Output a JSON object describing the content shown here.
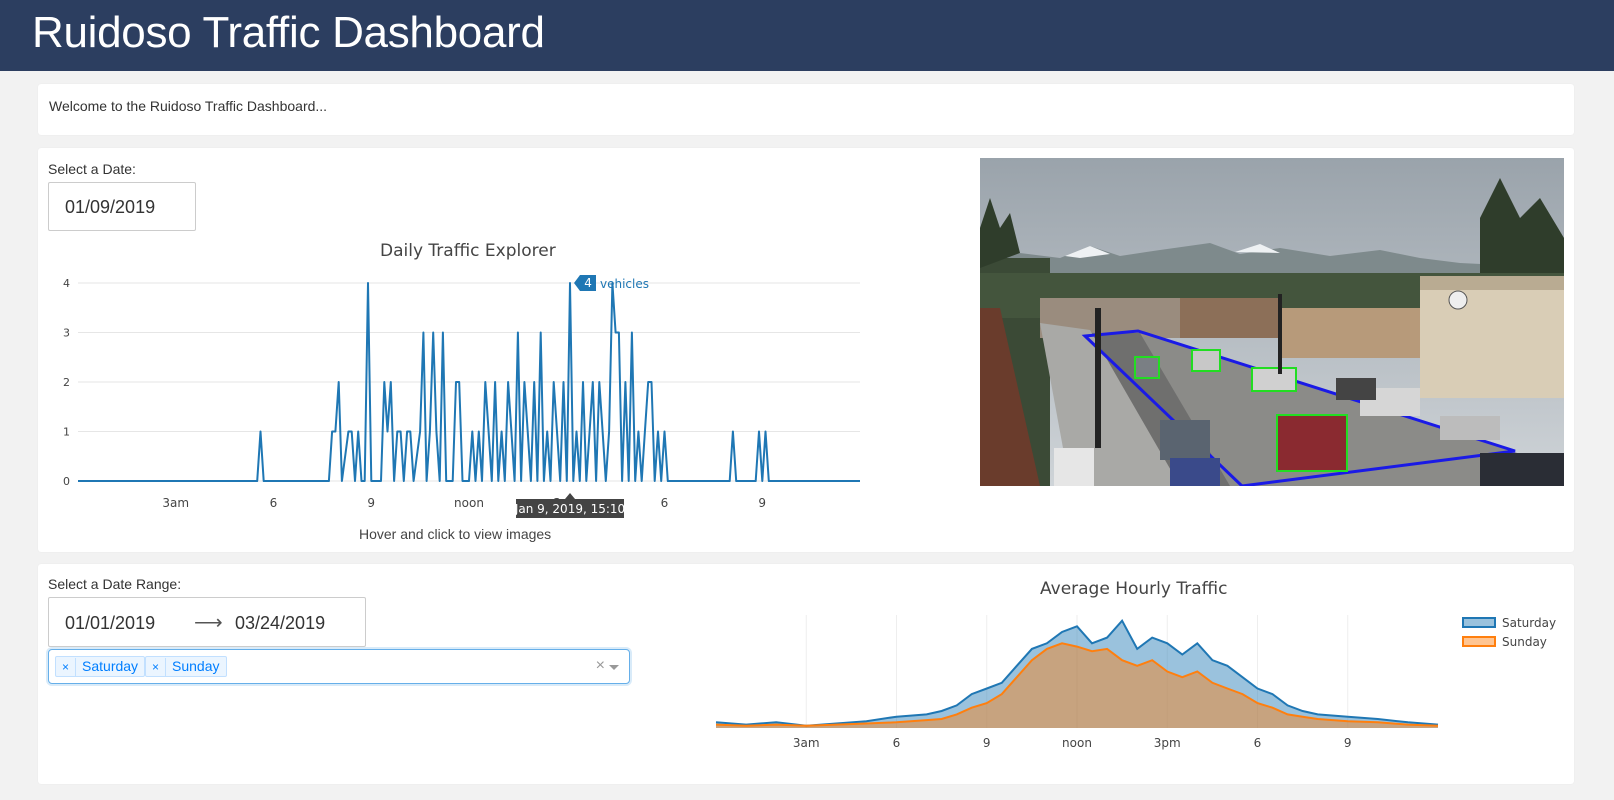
{
  "header": {
    "title": "Ruidoso Traffic Dashboard"
  },
  "welcome": {
    "text": "Welcome to the Ruidoso Traffic Dashboard..."
  },
  "explorer": {
    "date_label": "Select a Date:",
    "date_value": "01/09/2019",
    "hint": "Hover and click to view images",
    "hover": {
      "value": "4",
      "unit": "vehicles",
      "time": "Jan 9, 2019, 15:10"
    }
  },
  "camera_image": {
    "description": "traffic camera view with detected vehicles"
  },
  "hourly": {
    "range_label": "Select a Date Range:",
    "start_date": "01/01/2019",
    "end_date": "03/24/2019",
    "days": [
      "Saturday",
      "Sunday"
    ]
  },
  "colors": {
    "header": "#2c3e60",
    "series_blue": "#1f77b4",
    "series_orange": "#ff7f0e",
    "detection_box": "#22dd22",
    "roi": "#1a1ae6"
  },
  "chart_data": [
    {
      "type": "line",
      "title": "Daily Traffic Explorer",
      "x_tick_labels": [
        "3am",
        "6",
        "9",
        "noon",
        "3pm",
        "6",
        "9"
      ],
      "x_tick_hours": [
        3,
        6,
        9,
        12,
        15,
        18,
        21
      ],
      "y_ticks": [
        0,
        1,
        2,
        3,
        4
      ],
      "ylim": [
        0,
        4
      ],
      "xlim_hours": [
        0,
        24
      ],
      "series": [
        {
          "points": [
            [
              0,
              0
            ],
            [
              5.5,
              0
            ],
            [
              5.6,
              1
            ],
            [
              5.7,
              0
            ],
            [
              7.7,
              0
            ],
            [
              7.8,
              1
            ],
            [
              7.9,
              1
            ],
            [
              8.0,
              2
            ],
            [
              8.1,
              0
            ],
            [
              8.3,
              1
            ],
            [
              8.4,
              1
            ],
            [
              8.5,
              0
            ],
            [
              8.6,
              1
            ],
            [
              8.7,
              0
            ],
            [
              8.8,
              0
            ],
            [
              8.9,
              4
            ],
            [
              9.0,
              0
            ],
            [
              9.3,
              0
            ],
            [
              9.4,
              2
            ],
            [
              9.5,
              1
            ],
            [
              9.6,
              2
            ],
            [
              9.7,
              0
            ],
            [
              9.8,
              1
            ],
            [
              9.9,
              1
            ],
            [
              10.0,
              0
            ],
            [
              10.1,
              1
            ],
            [
              10.2,
              1
            ],
            [
              10.3,
              0
            ],
            [
              10.5,
              1
            ],
            [
              10.6,
              3
            ],
            [
              10.7,
              0
            ],
            [
              10.8,
              1
            ],
            [
              10.9,
              3
            ],
            [
              11.0,
              1
            ],
            [
              11.1,
              0
            ],
            [
              11.2,
              3
            ],
            [
              11.3,
              0
            ],
            [
              11.5,
              0
            ],
            [
              11.6,
              2
            ],
            [
              11.7,
              2
            ],
            [
              11.8,
              0
            ],
            [
              12.0,
              0
            ],
            [
              12.1,
              1
            ],
            [
              12.2,
              0
            ],
            [
              12.3,
              1
            ],
            [
              12.4,
              0
            ],
            [
              12.5,
              2
            ],
            [
              12.6,
              1
            ],
            [
              12.7,
              0
            ],
            [
              12.8,
              2
            ],
            [
              12.9,
              0
            ],
            [
              13.0,
              1
            ],
            [
              13.1,
              0
            ],
            [
              13.2,
              2
            ],
            [
              13.3,
              1
            ],
            [
              13.4,
              0
            ],
            [
              13.5,
              3
            ],
            [
              13.6,
              0
            ],
            [
              13.7,
              2
            ],
            [
              13.8,
              1
            ],
            [
              13.9,
              0
            ],
            [
              14.0,
              2
            ],
            [
              14.1,
              0
            ],
            [
              14.2,
              3
            ],
            [
              14.3,
              0
            ],
            [
              14.4,
              1
            ],
            [
              14.5,
              0
            ],
            [
              14.6,
              2
            ],
            [
              14.7,
              1
            ],
            [
              14.8,
              0
            ],
            [
              14.9,
              2
            ],
            [
              15.0,
              0
            ],
            [
              15.1,
              4
            ],
            [
              15.2,
              0
            ],
            [
              15.3,
              1
            ],
            [
              15.4,
              0
            ],
            [
              15.5,
              2
            ],
            [
              15.6,
              0
            ],
            [
              15.7,
              1
            ],
            [
              15.8,
              2
            ],
            [
              15.9,
              0
            ],
            [
              16.0,
              2
            ],
            [
              16.1,
              1
            ],
            [
              16.2,
              0
            ],
            [
              16.3,
              1
            ],
            [
              16.4,
              4
            ],
            [
              16.5,
              3
            ],
            [
              16.6,
              3
            ],
            [
              16.7,
              0
            ],
            [
              16.8,
              2
            ],
            [
              16.9,
              0
            ],
            [
              17.0,
              3
            ],
            [
              17.1,
              0
            ],
            [
              17.2,
              1
            ],
            [
              17.3,
              0
            ],
            [
              17.4,
              1
            ],
            [
              17.5,
              2
            ],
            [
              17.6,
              2
            ],
            [
              17.7,
              0
            ],
            [
              17.8,
              1
            ],
            [
              17.9,
              0
            ],
            [
              18.0,
              1
            ],
            [
              18.1,
              0
            ],
            [
              20.0,
              0
            ],
            [
              20.1,
              1
            ],
            [
              20.2,
              0
            ],
            [
              20.8,
              0
            ],
            [
              20.9,
              1
            ],
            [
              21.0,
              0
            ],
            [
              21.1,
              1
            ],
            [
              21.2,
              0
            ],
            [
              24,
              0
            ]
          ]
        }
      ]
    },
    {
      "type": "area",
      "title": "Average Hourly Traffic",
      "x_tick_labels": [
        "3am",
        "6",
        "9",
        "noon",
        "3pm",
        "6",
        "9"
      ],
      "x_tick_hours": [
        3,
        6,
        9,
        12,
        15,
        18,
        21
      ],
      "xlim_hours": [
        0,
        24
      ],
      "legend_position": "top-right",
      "series": [
        {
          "name": "Saturday",
          "points": [
            [
              0,
              0.05
            ],
            [
              1,
              0.03
            ],
            [
              2,
              0.05
            ],
            [
              3,
              0.02
            ],
            [
              4,
              0.04
            ],
            [
              5,
              0.06
            ],
            [
              6,
              0.1
            ],
            [
              7,
              0.12
            ],
            [
              7.5,
              0.15
            ],
            [
              8,
              0.2
            ],
            [
              8.5,
              0.3
            ],
            [
              9,
              0.35
            ],
            [
              9.5,
              0.4
            ],
            [
              10,
              0.55
            ],
            [
              10.5,
              0.7
            ],
            [
              11,
              0.75
            ],
            [
              11.5,
              0.85
            ],
            [
              12,
              0.9
            ],
            [
              12.5,
              0.75
            ],
            [
              13,
              0.8
            ],
            [
              13.5,
              0.95
            ],
            [
              14,
              0.7
            ],
            [
              14.5,
              0.8
            ],
            [
              15,
              0.75
            ],
            [
              15.5,
              0.65
            ],
            [
              16,
              0.75
            ],
            [
              16.5,
              0.6
            ],
            [
              17,
              0.55
            ],
            [
              17.5,
              0.45
            ],
            [
              18,
              0.35
            ],
            [
              18.5,
              0.3
            ],
            [
              19,
              0.2
            ],
            [
              19.5,
              0.15
            ],
            [
              20,
              0.12
            ],
            [
              21,
              0.1
            ],
            [
              22,
              0.08
            ],
            [
              23,
              0.05
            ],
            [
              24,
              0.03
            ]
          ]
        },
        {
          "name": "Sunday",
          "points": [
            [
              0,
              0.03
            ],
            [
              1,
              0.02
            ],
            [
              2,
              0.03
            ],
            [
              3,
              0.02
            ],
            [
              4,
              0.03
            ],
            [
              5,
              0.04
            ],
            [
              6,
              0.05
            ],
            [
              7,
              0.07
            ],
            [
              7.5,
              0.08
            ],
            [
              8,
              0.12
            ],
            [
              8.5,
              0.18
            ],
            [
              9,
              0.22
            ],
            [
              9.5,
              0.3
            ],
            [
              10,
              0.45
            ],
            [
              10.5,
              0.6
            ],
            [
              11,
              0.7
            ],
            [
              11.5,
              0.75
            ],
            [
              12,
              0.72
            ],
            [
              12.5,
              0.68
            ],
            [
              13,
              0.7
            ],
            [
              13.5,
              0.6
            ],
            [
              14,
              0.55
            ],
            [
              14.5,
              0.6
            ],
            [
              15,
              0.5
            ],
            [
              15.5,
              0.45
            ],
            [
              16,
              0.5
            ],
            [
              16.5,
              0.4
            ],
            [
              17,
              0.35
            ],
            [
              17.5,
              0.3
            ],
            [
              18,
              0.22
            ],
            [
              18.5,
              0.18
            ],
            [
              19,
              0.12
            ],
            [
              19.5,
              0.1
            ],
            [
              20,
              0.08
            ],
            [
              21,
              0.06
            ],
            [
              22,
              0.05
            ],
            [
              23,
              0.03
            ],
            [
              24,
              0.02
            ]
          ]
        }
      ]
    }
  ]
}
